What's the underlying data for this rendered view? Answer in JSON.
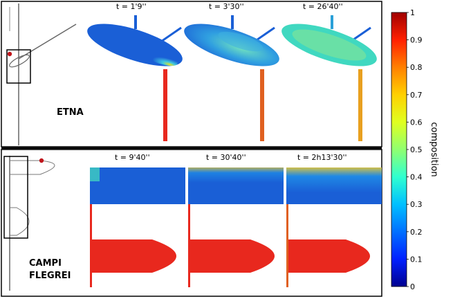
{
  "panels": [
    {
      "name": "ETNA",
      "times": [
        "t = 1'9''",
        "t = 3'30''",
        "t = 26'40''"
      ]
    },
    {
      "name_lines": [
        "CAMPI",
        "FLEGREI"
      ],
      "times": [
        "t = 9'40''",
        "t = 30'40''",
        "t = 2h13'30''"
      ]
    }
  ],
  "colorbar": {
    "label": "composition",
    "ticks": [
      "0",
      "0.1",
      "0.2",
      "0.3",
      "0.4",
      "0.5",
      "0.6",
      "0.7",
      "0.8",
      "0.9",
      "1"
    ],
    "colors": [
      "#00008f",
      "#0020ff",
      "#0070ff",
      "#00c0ff",
      "#30ffd0",
      "#90ff70",
      "#e0ff20",
      "#ffd000",
      "#ff8000",
      "#ff2000",
      "#a00000"
    ]
  },
  "colors": {
    "magma_low": "#1a5fd6",
    "magma_high": "#e8281e",
    "frame": "#000000"
  }
}
